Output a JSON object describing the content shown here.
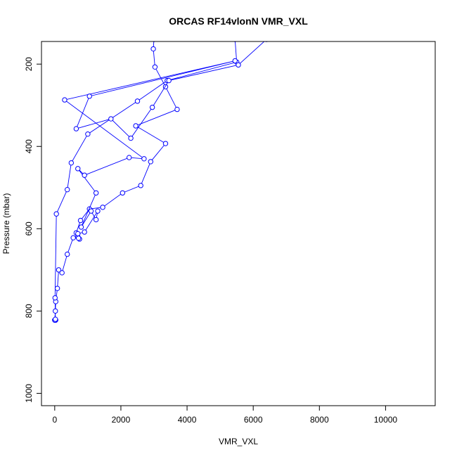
{
  "chart_data": {
    "type": "line",
    "title": "ORCAS RF14vlonN VMR_VXL",
    "xlabel": "VMR_VXL",
    "ylabel": "Pressure (mbar)",
    "xlim": [
      -400,
      11500
    ],
    "ylim": [
      1030,
      145
    ],
    "y_inverted": true,
    "x_ticks": [
      0,
      2000,
      4000,
      6000,
      8000,
      10000
    ],
    "y_ticks": [
      200,
      400,
      600,
      800,
      1000
    ],
    "series_color": "#0000ff",
    "grid": false,
    "legend": "none",
    "series": [
      {
        "values": [
          [
            3000,
            140
          ],
          [
            2980,
            163
          ],
          [
            3030,
            207
          ],
          [
            3350,
            255
          ],
          [
            3700,
            310
          ],
          [
            2450,
            350
          ],
          [
            3350,
            393
          ],
          [
            2900,
            437
          ],
          [
            2600,
            495
          ],
          [
            2050,
            513
          ],
          [
            1450,
            548
          ],
          [
            1050,
            552
          ],
          [
            780,
            580
          ],
          [
            650,
            610
          ],
          [
            700,
            620
          ],
          [
            750,
            625
          ],
          [
            720,
            623
          ],
          [
            560,
            622
          ],
          [
            380,
            662
          ],
          [
            220,
            707
          ],
          [
            120,
            700
          ],
          [
            80,
            745
          ],
          [
            30,
            777
          ],
          [
            20,
            800
          ],
          [
            0,
            822
          ],
          [
            10,
            822
          ],
          [
            30,
            822
          ],
          [
            5,
            822
          ],
          [
            20,
            820
          ],
          [
            10,
            768
          ],
          [
            50,
            564
          ],
          [
            380,
            505
          ],
          [
            500,
            440
          ],
          [
            1000,
            370
          ],
          [
            2500,
            290
          ],
          [
            3400,
            240
          ],
          [
            5500,
            195
          ],
          [
            5450,
            140
          ]
        ]
      },
      {
        "values": [
          [
            6400,
            140
          ],
          [
            5550,
            202
          ],
          [
            3450,
            240
          ],
          [
            2950,
            305
          ],
          [
            2300,
            380
          ],
          [
            1700,
            333
          ],
          [
            650,
            357
          ],
          [
            1050,
            278
          ],
          [
            5450,
            192
          ],
          [
            300,
            287
          ],
          [
            2700,
            430
          ],
          [
            2250,
            427
          ],
          [
            900,
            470
          ],
          [
            700,
            454
          ],
          [
            1250,
            513
          ],
          [
            800,
            596
          ],
          [
            1100,
            557
          ],
          [
            1250,
            578
          ],
          [
            1300,
            557
          ],
          [
            900,
            608
          ],
          [
            700,
            612
          ]
        ]
      }
    ]
  }
}
